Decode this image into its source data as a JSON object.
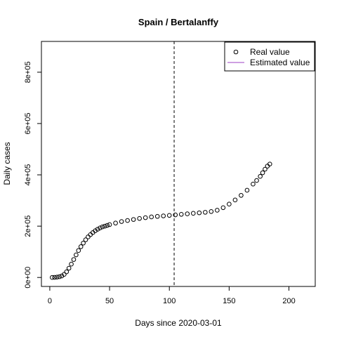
{
  "chart_data": {
    "type": "scatter",
    "title": "Spain / Bertalanffy",
    "xlabel": "Days since 2020-03-01",
    "ylabel": "Daily cases",
    "xlim": [
      -7,
      222
    ],
    "ylim": [
      -35000,
      920000
    ],
    "x_ticks": [
      0,
      50,
      100,
      150,
      200
    ],
    "x_tick_labels": [
      "0",
      "50",
      "100",
      "150",
      "200"
    ],
    "y_ticks": [
      0,
      200000,
      400000,
      600000,
      800000
    ],
    "y_tick_labels": [
      "0e+00",
      "2e+05",
      "4e+05",
      "6e+05",
      "8e+05"
    ],
    "grid": false,
    "legend_position": "top-right",
    "vline": {
      "x": 104,
      "style": "dashed"
    },
    "series": [
      {
        "name": "Real value",
        "marker": "open-circle",
        "color": "#000000",
        "x": [
          2,
          4,
          6,
          8,
          10,
          12,
          14,
          16,
          18,
          20,
          22,
          24,
          26,
          28,
          30,
          32,
          34,
          36,
          38,
          40,
          42,
          44,
          46,
          48,
          50,
          55,
          60,
          65,
          70,
          75,
          80,
          85,
          90,
          95,
          100,
          105,
          110,
          115,
          120,
          125,
          130,
          135,
          140,
          145,
          150,
          155,
          160,
          165,
          170,
          173,
          176,
          178,
          180,
          182,
          184
        ],
        "y": [
          0,
          500,
          1500,
          3000,
          6000,
          12000,
          22000,
          36000,
          52000,
          70000,
          88000,
          105000,
          120000,
          134000,
          147000,
          158000,
          167000,
          175000,
          182000,
          188000,
          193000,
          197000,
          200000,
          203000,
          206000,
          212000,
          218000,
          222000,
          226000,
          230000,
          233000,
          236000,
          238000,
          240000,
          242000,
          244000,
          246000,
          248000,
          250000,
          252000,
          254000,
          257000,
          262000,
          272000,
          286000,
          302000,
          320000,
          340000,
          364000,
          378000,
          394000,
          408000,
          422000,
          434000,
          442000
        ]
      },
      {
        "name": "Estimated value",
        "marker": "line",
        "color": "#9c3fc4",
        "x": [],
        "y": []
      }
    ]
  }
}
